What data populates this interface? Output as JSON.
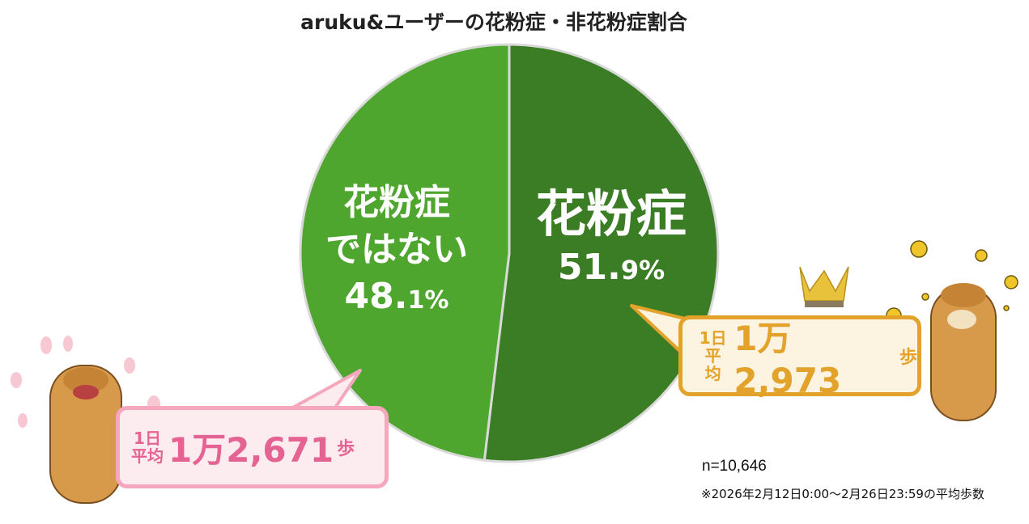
{
  "chart_data": {
    "type": "pie",
    "title": "aruku&ユーザーの花粉症・非花粉症割合",
    "slices": [
      {
        "label": "花粉症",
        "value": 51.9,
        "value_label": "51.9%",
        "color": "#3b7d25"
      },
      {
        "label": "花粉症ではない",
        "value": 48.1,
        "value_label": "48.1%",
        "color": "#4fa62f"
      }
    ],
    "start": "top",
    "direction": "clockwise"
  },
  "labels": {
    "hay_line1": "花粉症",
    "hay_pct_int": "51.",
    "hay_pct_dec": "9%",
    "non_line1": "花粉症",
    "non_line2": "ではない",
    "non_pct_int": "48.",
    "non_pct_dec": "1%"
  },
  "callouts": {
    "hay": {
      "prefix1": "1日",
      "prefix2": "平均",
      "big": "1万2,973",
      "unit": "歩",
      "color": "#e3a22a",
      "bg": "#fdf3e1"
    },
    "non": {
      "prefix1": "1日",
      "prefix2": "平均",
      "big": "1万2,671",
      "unit": "歩",
      "color": "#e56392",
      "bg": "#fdecef"
    }
  },
  "footer": {
    "n": "n=10,646",
    "note": "※2026年2月12日0:00～2月26日23:59の平均歩数"
  }
}
